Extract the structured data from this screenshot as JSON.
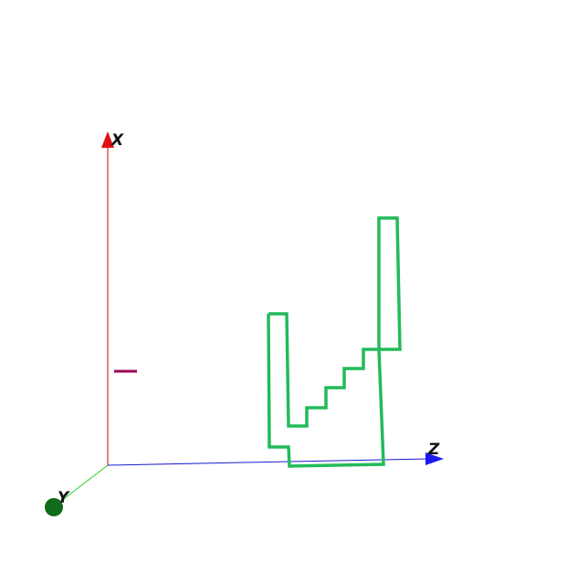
{
  "scene": {
    "background": "#ffffff",
    "axes": {
      "x": {
        "label": "X",
        "color": "#cc0000",
        "arrow_color": "#dd1111"
      },
      "y": {
        "label": "Y",
        "color": "#22cc22",
        "marker_color": "#0f6b1a"
      },
      "z": {
        "label": "Z",
        "color": "#1a1acc",
        "arrow_color": "#1a1aee"
      }
    },
    "marker": {
      "color": "#990055"
    },
    "shape": {
      "color": "#22bb5a"
    }
  }
}
